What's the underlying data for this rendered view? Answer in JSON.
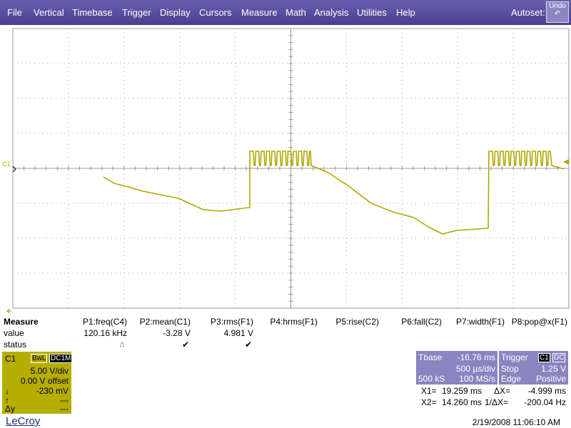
{
  "menu": {
    "items": [
      "File",
      "Vertical",
      "Timebase",
      "Trigger",
      "Display",
      "Cursors",
      "Measure",
      "Math",
      "Analysis",
      "Utilities",
      "Help"
    ],
    "autoset": "Autoset:",
    "undo": "Undo"
  },
  "grid": {
    "channel_marker": "C1"
  },
  "measure": {
    "title": "Measure",
    "params": [
      "P1:freq(C4)",
      "P2:mean(C1)",
      "P3:rms(F1)",
      "P4:hrms(F1)",
      "P5:rise(C2)",
      "P6:fall(C2)",
      "P7:width(F1)",
      "P8:pop@x(F1)"
    ],
    "value_label": "value",
    "values": [
      "120.16 kHz",
      "-3.28 V",
      "4.981 V"
    ],
    "status_label": "status"
  },
  "channel": {
    "name": "C1",
    "bandwidth": "BwL",
    "coupling": "DC1M",
    "scale": "5.00 V/div",
    "offset": "0.00 V offset",
    "down_symbol": "↓",
    "down_value": "-230 mV",
    "up_symbol": "↑",
    "up_value": "---",
    "delta_symbol": "Δy",
    "delta_value": "---"
  },
  "timebase": {
    "title": "Tbase",
    "delay": "-16.76 ms",
    "scale": "500 µs/div",
    "samples": "500 kS",
    "rate": "100 MS/s"
  },
  "trigger": {
    "title": "Trigger",
    "source": "C1",
    "coupling": "DC",
    "mode": "Stop",
    "level": "1.25 V",
    "type": "Edge",
    "slope": "Positive"
  },
  "cursors": {
    "x1_label": "X1=",
    "x1": "19.259 ms",
    "dx_label": "ΔX=",
    "dx": "-4.999 ms",
    "x2_label": "X2=",
    "x2": "14.260 ms",
    "inv_label": "1/ΔX=",
    "inv": "-200.04 Hz"
  },
  "footer": {
    "brand": "LeCroy",
    "timestamp": "2/19/2008 11:06:10 AM"
  }
}
